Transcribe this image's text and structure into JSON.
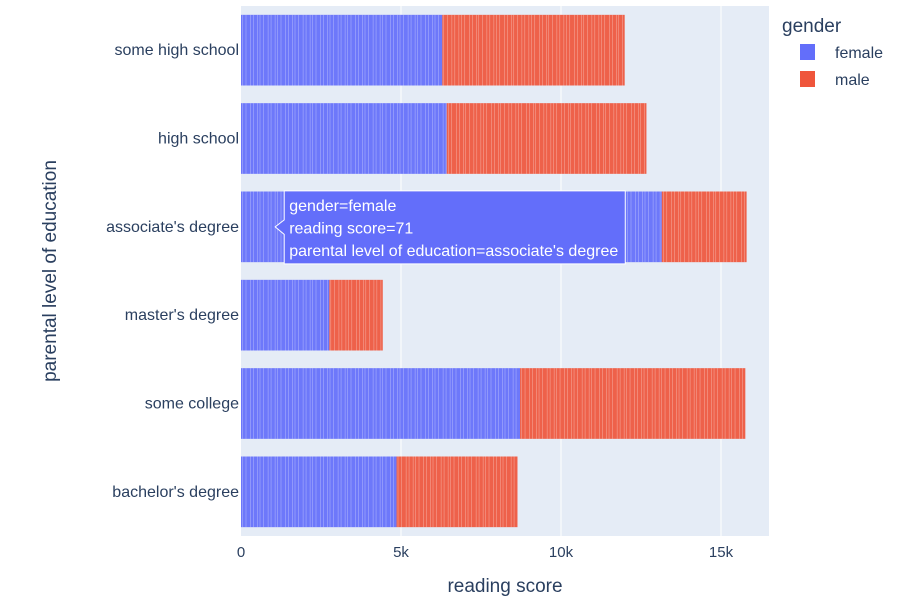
{
  "chart_data": {
    "type": "bar",
    "orientation": "horizontal",
    "barmode": "stack",
    "xlabel": "reading score",
    "ylabel": "parental level of education",
    "xlim": [
      0,
      16500
    ],
    "xticks": [
      0,
      5000,
      10000,
      15000
    ],
    "xtick_labels": [
      "0",
      "5k",
      "10k",
      "15k"
    ],
    "categories": [
      "some high school",
      "high school",
      "associate's degree",
      "master's degree",
      "some college",
      "bachelor's degree"
    ],
    "series": [
      {
        "name": "female",
        "color": "#636EFA",
        "values": [
          6290,
          6430,
          13150,
          2760,
          8720,
          4860
        ]
      },
      {
        "name": "male",
        "color": "#EF553B",
        "values": [
          5700,
          6240,
          2650,
          1670,
          7040,
          3780
        ]
      }
    ],
    "legend": {
      "title": "gender",
      "placement": "top-right"
    },
    "grid": true,
    "background_color": "#E5ECF6",
    "hover": {
      "category": "associate's degree",
      "series": "female",
      "lines": [
        "gender=female",
        "reading score=71",
        "parental level of education=associate's degree"
      ]
    }
  }
}
